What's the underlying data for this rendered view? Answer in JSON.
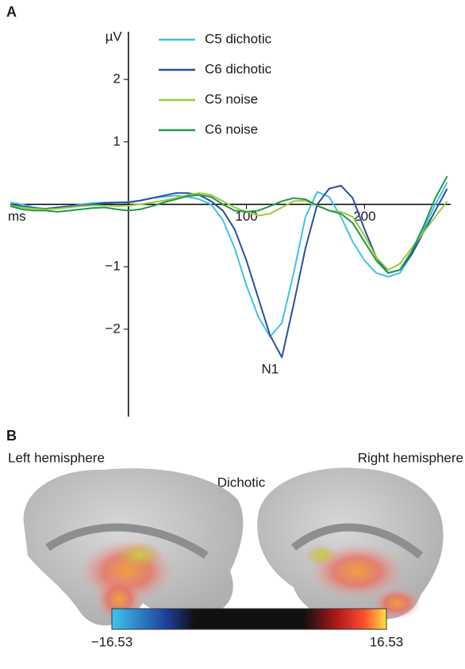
{
  "panel_a_label": "A",
  "chart_data": {
    "type": "line",
    "x_label": "ms",
    "y_label": "µV",
    "annotation": "N1",
    "x": [
      -100,
      -90,
      -80,
      -70,
      -60,
      -50,
      -40,
      -30,
      -20,
      -10,
      0,
      10,
      20,
      30,
      40,
      50,
      60,
      70,
      80,
      90,
      100,
      110,
      120,
      130,
      140,
      150,
      160,
      170,
      180,
      190,
      200,
      210,
      220,
      230,
      240,
      250,
      260,
      270
    ],
    "xlim": [
      -100,
      273
    ],
    "ylim": [
      -3.4,
      2.7
    ],
    "xticks": [
      100,
      200
    ],
    "yticks": [
      2,
      1,
      {
        "value": -1,
        "label": "−1"
      },
      {
        "value": -2,
        "label": "−2"
      }
    ],
    "series": [
      {
        "name": "C5 dichotic",
        "color": "#3ec3e8",
        "values": [
          0.03,
          0.0,
          -0.05,
          -0.08,
          -0.06,
          -0.03,
          0.0,
          0.02,
          0.03,
          0.03,
          0.04,
          0.06,
          0.1,
          0.12,
          0.14,
          0.12,
          0.08,
          0.0,
          -0.25,
          -0.7,
          -1.3,
          -1.8,
          -2.12,
          -1.9,
          -1.1,
          -0.2,
          0.2,
          0.12,
          -0.2,
          -0.6,
          -0.9,
          -1.1,
          -1.16,
          -1.1,
          -0.8,
          -0.4,
          0.0,
          0.35
        ]
      },
      {
        "name": "C6 dichotic",
        "color": "#2b4ea2",
        "values": [
          0.0,
          -0.03,
          -0.06,
          -0.07,
          -0.05,
          -0.03,
          -0.02,
          0.0,
          0.02,
          0.03,
          0.03,
          0.06,
          0.1,
          0.14,
          0.18,
          0.18,
          0.15,
          0.05,
          -0.1,
          -0.4,
          -0.9,
          -1.5,
          -2.1,
          -2.45,
          -1.6,
          -0.7,
          0.0,
          0.25,
          0.3,
          0.1,
          -0.4,
          -0.85,
          -1.1,
          -1.05,
          -0.8,
          -0.45,
          -0.1,
          0.25
        ]
      },
      {
        "name": "C5 noise",
        "color": "#9ccb3b",
        "values": [
          -0.02,
          -0.05,
          -0.07,
          -0.08,
          -0.07,
          -0.05,
          -0.03,
          -0.02,
          -0.02,
          -0.03,
          -0.02,
          0.0,
          0.03,
          0.06,
          0.1,
          0.15,
          0.18,
          0.15,
          0.05,
          -0.05,
          -0.12,
          -0.18,
          -0.15,
          -0.05,
          0.05,
          0.06,
          -0.02,
          -0.1,
          -0.12,
          -0.2,
          -0.5,
          -0.85,
          -1.05,
          -0.95,
          -0.7,
          -0.45,
          -0.2,
          0.05
        ]
      },
      {
        "name": "C6 noise",
        "color": "#1f9a48",
        "values": [
          -0.03,
          -0.08,
          -0.1,
          -0.1,
          -0.12,
          -0.1,
          -0.08,
          -0.06,
          -0.05,
          -0.08,
          -0.1,
          -0.08,
          -0.03,
          0.03,
          0.08,
          0.13,
          0.15,
          0.12,
          0.0,
          -0.1,
          -0.12,
          -0.1,
          -0.03,
          0.05,
          0.1,
          0.08,
          -0.02,
          -0.1,
          -0.15,
          -0.3,
          -0.6,
          -0.9,
          -1.1,
          -1.05,
          -0.75,
          -0.35,
          0.1,
          0.45
        ]
      }
    ]
  },
  "panel_b": {
    "label": "B",
    "left_label": "Left hemisphere",
    "right_label": "Right hemisphere",
    "condition": "Dichotic",
    "colorbar": {
      "min": {
        "value": -16.53,
        "label": "−16.53"
      },
      "max": {
        "value": 16.53,
        "label": "16.53"
      }
    }
  }
}
